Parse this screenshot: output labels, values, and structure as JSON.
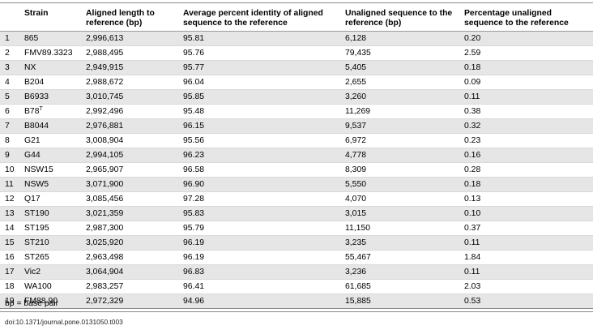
{
  "table": {
    "headers": {
      "index": "",
      "strain": "Strain",
      "aligned_length": "Aligned length to reference (bp)",
      "avg_identity": "Average percent identity of aligned sequence to the reference",
      "unaligned_seq": "Unaligned sequence to the reference (bp)",
      "pct_unaligned": "Percentage unaligned sequence to the reference"
    },
    "rows": [
      {
        "index": "1",
        "strain": "865",
        "strain_sup": "",
        "aligned": "2,996,613",
        "identity": "95.81",
        "unaligned": "6,128",
        "pct": "0.20"
      },
      {
        "index": "2",
        "strain": "FMV89.3323",
        "strain_sup": "",
        "aligned": "2,988,495",
        "identity": "95.76",
        "unaligned": "79,435",
        "pct": "2.59"
      },
      {
        "index": "3",
        "strain": "NX",
        "strain_sup": "",
        "aligned": "2,949,915",
        "identity": "95.77",
        "unaligned": "5,405",
        "pct": "0.18"
      },
      {
        "index": "4",
        "strain": "B204",
        "strain_sup": "",
        "aligned": "2,988,672",
        "identity": "96.04",
        "unaligned": "2,655",
        "pct": "0.09"
      },
      {
        "index": "5",
        "strain": "B6933",
        "strain_sup": "",
        "aligned": "3,010,745",
        "identity": "95.85",
        "unaligned": "3,260",
        "pct": "0.11"
      },
      {
        "index": "6",
        "strain": "B78",
        "strain_sup": "T",
        "aligned": "2,992,496",
        "identity": "95.48",
        "unaligned": "11,269",
        "pct": "0.38"
      },
      {
        "index": "7",
        "strain": "B8044",
        "strain_sup": "",
        "aligned": "2,976,881",
        "identity": "96.15",
        "unaligned": "9,537",
        "pct": "0.32"
      },
      {
        "index": "8",
        "strain": "G21",
        "strain_sup": "",
        "aligned": "3,008,904",
        "identity": "95.56",
        "unaligned": "6,972",
        "pct": "0.23"
      },
      {
        "index": "9",
        "strain": "G44",
        "strain_sup": "",
        "aligned": "2,994,105",
        "identity": "96.23",
        "unaligned": "4,778",
        "pct": "0.16"
      },
      {
        "index": "10",
        "strain": "NSW15",
        "strain_sup": "",
        "aligned": "2,965,907",
        "identity": "96.58",
        "unaligned": "8,309",
        "pct": "0.28"
      },
      {
        "index": "11",
        "strain": "NSW5",
        "strain_sup": "",
        "aligned": "3,071,900",
        "identity": "96.90",
        "unaligned": "5,550",
        "pct": "0.18"
      },
      {
        "index": "12",
        "strain": "Q17",
        "strain_sup": "",
        "aligned": "3,085,456",
        "identity": "97.28",
        "unaligned": "4,070",
        "pct": "0.13"
      },
      {
        "index": "13",
        "strain": "ST190",
        "strain_sup": "",
        "aligned": "3,021,359",
        "identity": "95.83",
        "unaligned": "3,015",
        "pct": "0.10"
      },
      {
        "index": "14",
        "strain": "ST195",
        "strain_sup": "",
        "aligned": "2,987,300",
        "identity": "95.79",
        "unaligned": "11,150",
        "pct": "0.37"
      },
      {
        "index": "15",
        "strain": "ST210",
        "strain_sup": "",
        "aligned": "3,025,920",
        "identity": "96.19",
        "unaligned": "3,235",
        "pct": "0.11"
      },
      {
        "index": "16",
        "strain": "ST265",
        "strain_sup": "",
        "aligned": "2,963,498",
        "identity": "96.19",
        "unaligned": "55,467",
        "pct": "1.84"
      },
      {
        "index": "17",
        "strain": "Vic2",
        "strain_sup": "",
        "aligned": "3,064,904",
        "identity": "96.83",
        "unaligned": "3,236",
        "pct": "0.11"
      },
      {
        "index": "18",
        "strain": "WA100",
        "strain_sup": "",
        "aligned": "2,983,257",
        "identity": "96.41",
        "unaligned": "61,685",
        "pct": "2.03"
      },
      {
        "index": "19",
        "strain": "FM88.90",
        "strain_sup": "",
        "aligned": "2,972,329",
        "identity": "94.96",
        "unaligned": "15,885",
        "pct": "0.53"
      }
    ]
  },
  "footnote": "bp = base pair",
  "doi": "doi:10.1371/journal.pone.0131050.t003"
}
